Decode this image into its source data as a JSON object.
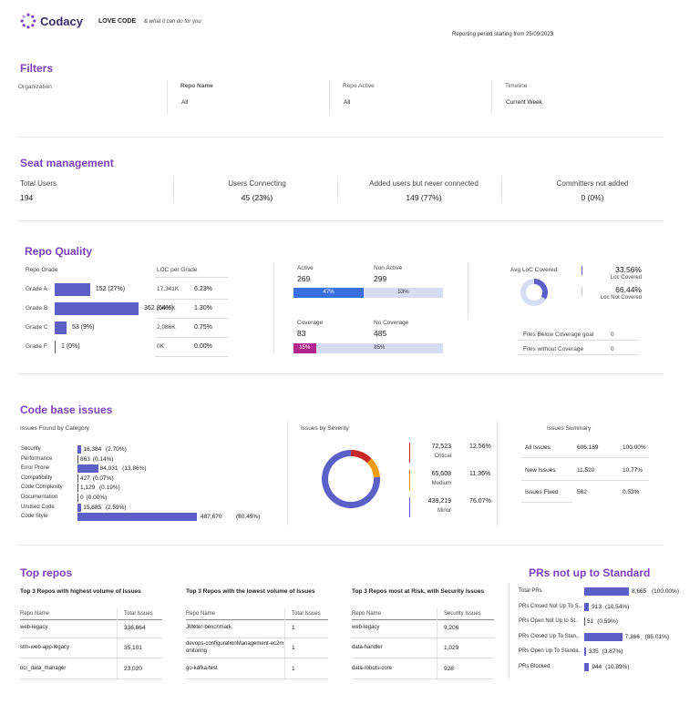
{
  "header": {
    "logo_text": "Codacy",
    "love_code": "LOVE CODE",
    "tagline": "& what it can do for you",
    "reporting_period": "Reporting period starting from 25/09/2023"
  },
  "filters": {
    "title": "Filters",
    "organization_label": "Organization",
    "repo_name_label": "Repo Name",
    "repo_name_value": "All",
    "repo_active_label": "Repo Active",
    "repo_active_value": "All",
    "timeline_label": "Timeline",
    "timeline_value": "Current Week"
  },
  "seat": {
    "title": "Seat management",
    "total_users_label": "Total Users",
    "total_users_value": "194",
    "users_connecting_label": "Users Connecting",
    "users_connecting_value": "45 (23%)",
    "added_never_label": "Added users but never connected",
    "added_never_value": "149 (77%)",
    "committers_label": "Committers not added",
    "committers_value": "0 (0%)"
  },
  "repo_quality": {
    "title": "Repo Quality",
    "grade_header": "Repo Grade",
    "loc_header": "LOC per Grade",
    "grades": [
      {
        "name": "Grade A",
        "label": "152 (27%)",
        "fraction": 0.27,
        "loc": "17,341K",
        "pct": "6.23%"
      },
      {
        "name": "Grade B",
        "label": "362 (64%)",
        "fraction": 0.64,
        "loc": "3,605K",
        "pct": "1.30%"
      },
      {
        "name": "Grade C",
        "label": "53 (9%)",
        "fraction": 0.09,
        "loc": "2,086K",
        "pct": "0.75%"
      },
      {
        "name": "Grade F",
        "label": "1 (0%)",
        "fraction": 0.0,
        "loc": "0K",
        "pct": "0.00%"
      }
    ],
    "active_label": "Active",
    "active_value": "269",
    "non_active_label": "Non Active",
    "non_active_value": "299",
    "active_pct": "47%",
    "active_fraction": 0.47,
    "non_active_pct": "53%",
    "coverage_label": "Coverage",
    "coverage_value": "83",
    "no_coverage_label": "No Coverage",
    "no_coverage_value": "485",
    "coverage_pct": "15%",
    "coverage_fraction": 0.15,
    "no_coverage_pct": "85%",
    "avg_loc_label": "Avg LoC Covered",
    "loc_covered_pct": "33.56%",
    "loc_covered_label": "Loc Covered",
    "loc_covered_fraction": 0.3356,
    "loc_not_covered_pct": "66.44%",
    "loc_not_covered_label": "Loc Not Covered",
    "files_below_label": "Files Below Coverage goal",
    "files_below_value": "0",
    "files_without_label": "Files without Coverage",
    "files_without_value": "0"
  },
  "code_issues": {
    "title": "Code base issues",
    "by_category_header": "Issues Found by Category",
    "categories": [
      {
        "name": "Security",
        "value": "16,384",
        "pct": "(2.70%)",
        "fraction": 0.027
      },
      {
        "name": "Performance",
        "value": "863",
        "pct": "(0.14%)",
        "fraction": 0.0014
      },
      {
        "name": "Error Prone",
        "value": "84,031",
        "pct": "(13.86%)",
        "fraction": 0.1386
      },
      {
        "name": "Compatibility",
        "value": "427",
        "pct": "(0.07%)",
        "fraction": 0.0007
      },
      {
        "name": "Code Complexity",
        "value": "1,129",
        "pct": "(0.19%)",
        "fraction": 0.0019
      },
      {
        "name": "Documentation",
        "value": "0",
        "pct": "(0.00%)",
        "fraction": 0.0
      },
      {
        "name": "Unused Code",
        "value": "15,685",
        "pct": "(2.59%)",
        "fraction": 0.0259
      },
      {
        "name": "Code Style",
        "value": "487,670",
        "pct": "(80.45%)",
        "fraction": 0.8045
      }
    ],
    "by_severity_header": "Issues by Severity",
    "severities": [
      {
        "name": "Critical",
        "value": "72,523",
        "pct": "12.56%",
        "fraction": 0.1256,
        "color": "#c62828"
      },
      {
        "name": "Medium",
        "value": "65,608",
        "pct": "11.36%",
        "fraction": 0.1136,
        "color": "#f39c12"
      },
      {
        "name": "Minor",
        "value": "439,219",
        "pct": "76.07%",
        "fraction": 0.7607,
        "color": "#5b5fc7"
      }
    ],
    "summary_header": "Issues Summary",
    "summary": [
      {
        "name": "All Issues",
        "value": "606,189",
        "pct": "100.00%"
      },
      {
        "name": "New Issues",
        "value": "11,520",
        "pct": "10.77%"
      },
      {
        "name": "Issues Fixed",
        "value": "562",
        "pct": "0.53%"
      }
    ]
  },
  "top_repos": {
    "title": "Top repos",
    "tables": [
      {
        "header": "Top 3 Repos with highest volume of Issues",
        "col1": "Repo Name",
        "col2": "Total Issues",
        "rows": [
          [
            "web-legacy",
            "336,864"
          ],
          [
            "stm-web-app-legacy",
            "35,101"
          ],
          [
            "ocr_data_manager",
            "23,020"
          ]
        ]
      },
      {
        "header": "Top 3 Repos with the lowest volume of Issues",
        "col1": "Repo Name",
        "col2": "Total Issues",
        "rows": [
          [
            "JMeter-benchmark",
            "1"
          ],
          [
            "devops-configurationManagement-ec2monitoring",
            "1"
          ],
          [
            "go-kafka-test",
            "1"
          ]
        ]
      },
      {
        "header": "Top 3 Repos  most at Risk, with Security Issues",
        "col1": "Repo Name",
        "col2": "Security Issues",
        "rows": [
          [
            "web-legacy",
            "9,206"
          ],
          [
            "data-handler",
            "1,029"
          ],
          [
            "data-robots-core",
            "928"
          ]
        ]
      }
    ]
  },
  "prs": {
    "title": "PRs not up to Standard",
    "rows": [
      {
        "name": "Total PRs",
        "value": "8,665",
        "pct": "(100.00%)",
        "fraction": 1.0
      },
      {
        "name": "PRs Closed Not Up To S..",
        "value": "913",
        "pct": "(10.54%)",
        "fraction": 0.1054
      },
      {
        "name": "PRs Open Not Up to St..",
        "value": "51",
        "pct": "(0.59%)",
        "fraction": 0.0059
      },
      {
        "name": "PRs Closed Up To Stan..",
        "value": "7,366",
        "pct": "(85.01%)",
        "fraction": 0.8501
      },
      {
        "name": "PRs Open Up To Standa..",
        "value": "335",
        "pct": "(3.87%)",
        "fraction": 0.0387
      },
      {
        "name": "PRs Blocked",
        "value": "944",
        "pct": "(10.89%)",
        "fraction": 0.1089
      }
    ]
  },
  "colors": {
    "accent": "#7b3fbf",
    "bar": "#5b5fc7",
    "active_bar": "#3b6fe0",
    "inactive_bar": "#d6dcf2",
    "coverage_bar": "#b3268f"
  }
}
